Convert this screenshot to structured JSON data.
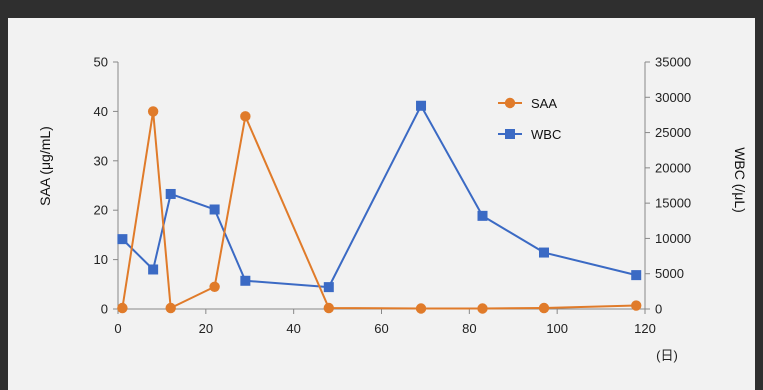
{
  "chart_data": {
    "type": "line",
    "xlabel": "",
    "x_unit": "(日)",
    "ylabel_left": "SAA (μg/mL)",
    "ylabel_right": "WBC (/μL)",
    "xlim": [
      0,
      120
    ],
    "ylim_left": [
      0,
      50
    ],
    "ylim_right": [
      0,
      35000
    ],
    "x_ticks": [
      0,
      20,
      40,
      60,
      80,
      100,
      120
    ],
    "y_ticks_left": [
      0,
      10,
      20,
      30,
      40,
      50
    ],
    "y_ticks_right": [
      0,
      5000,
      10000,
      15000,
      20000,
      25000,
      30000,
      35000
    ],
    "grid": false,
    "legend_position": "top-right",
    "series": [
      {
        "name": "SAA",
        "axis": "left",
        "marker": "circle",
        "color": "#e07b2a",
        "x": [
          1,
          8,
          12,
          22,
          29,
          48,
          69,
          83,
          97,
          118
        ],
        "y": [
          0.2,
          40,
          0.2,
          4.5,
          39,
          0.2,
          0.1,
          0.1,
          0.2,
          0.7
        ]
      },
      {
        "name": "WBC",
        "axis": "right",
        "marker": "square",
        "color": "#3b6ac4",
        "x": [
          1,
          8,
          12,
          22,
          29,
          48,
          69,
          83,
          97,
          118
        ],
        "y": [
          9900,
          5600,
          16300,
          14100,
          4000,
          3100,
          28800,
          13200,
          8000,
          4800
        ]
      }
    ]
  }
}
